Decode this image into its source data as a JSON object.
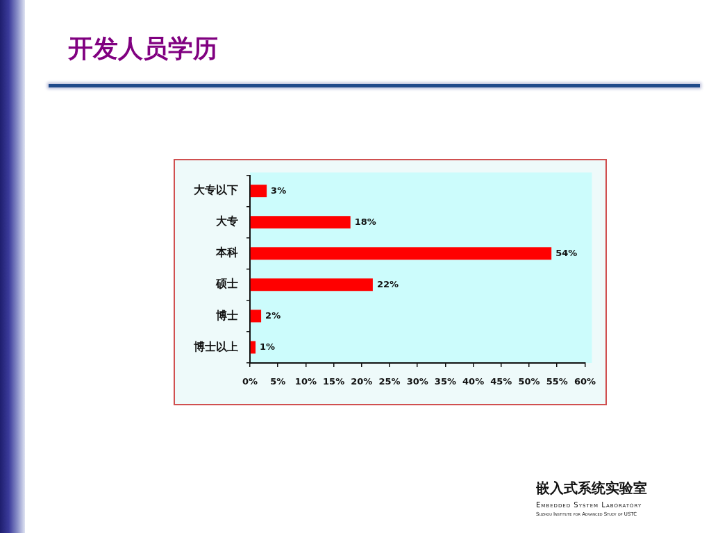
{
  "chart_data": {
    "type": "bar",
    "title": "开发人员学历",
    "orientation": "horizontal",
    "categories": [
      "大专以下",
      "大专",
      "本科",
      "硕士",
      "博士",
      "博士以上"
    ],
    "values": [
      3,
      18,
      54,
      22,
      2,
      1
    ],
    "value_labels": [
      "3%",
      "18%",
      "54%",
      "22%",
      "2%",
      "1%"
    ],
    "color": "#ff0000",
    "xlim": [
      0,
      60
    ],
    "xticks": [
      {
        "value": 0,
        "label": "0%"
      },
      {
        "value": 5,
        "label": "5%"
      },
      {
        "value": 10,
        "label": "10%"
      },
      {
        "value": 15,
        "label": "15%"
      },
      {
        "value": 20,
        "label": "20%"
      },
      {
        "value": 25,
        "label": "25%"
      },
      {
        "value": 30,
        "label": "30%"
      },
      {
        "value": 35,
        "label": "35%"
      },
      {
        "value": 40,
        "label": "40%"
      },
      {
        "value": 45,
        "label": "45%"
      },
      {
        "value": 50,
        "label": "50%"
      },
      {
        "value": 55,
        "label": "55%"
      },
      {
        "value": 60,
        "label": "60%"
      }
    ],
    "grid": false,
    "legend": false,
    "annotations": [
      "嵌入式系统实验室",
      "Embedded System Laboratory",
      "Suzhou Institute for Advanced Study of USTC"
    ]
  }
}
